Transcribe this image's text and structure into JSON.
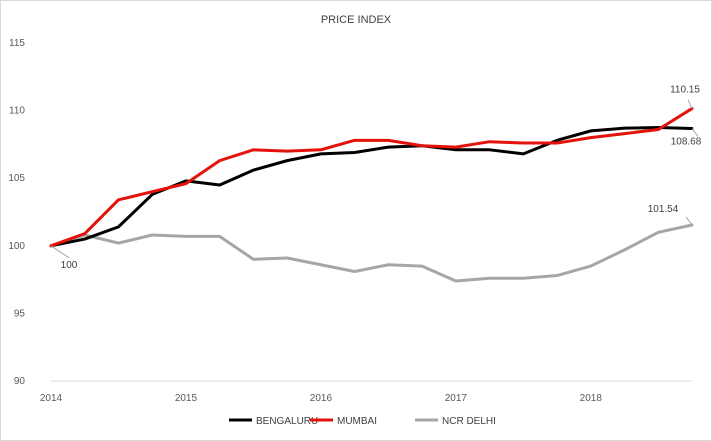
{
  "chart_data": {
    "type": "line",
    "title": "PRICE INDEX",
    "xlabel": "",
    "ylabel": "",
    "ylim": [
      90,
      115
    ],
    "yticks": [
      90,
      95,
      100,
      105,
      110,
      115
    ],
    "x": [
      2014.0,
      2014.25,
      2014.5,
      2014.75,
      2015.0,
      2015.25,
      2015.5,
      2015.75,
      2016.0,
      2016.25,
      2016.5,
      2016.75,
      2017.0,
      2017.25,
      2017.5,
      2017.75,
      2018.0,
      2018.25,
      2018.5,
      2018.75
    ],
    "xticks": [
      {
        "value": 2014,
        "label": "2014"
      },
      {
        "value": 2015,
        "label": "2015"
      },
      {
        "value": 2016,
        "label": "2016"
      },
      {
        "value": 2017,
        "label": "2017"
      },
      {
        "value": 2018,
        "label": "2018"
      }
    ],
    "grid": false,
    "legend_position": "bottom",
    "series": [
      {
        "name": "BENGALURU",
        "color": "#000000",
        "values": [
          100,
          100.5,
          101.4,
          103.8,
          104.8,
          104.5,
          105.6,
          106.3,
          106.8,
          106.9,
          107.3,
          107.4,
          107.1,
          107.1,
          106.8,
          107.8,
          108.5,
          108.7,
          108.75,
          108.68
        ]
      },
      {
        "name": "MUMBAI",
        "color": "#e3120b",
        "values": [
          100,
          100.9,
          103.4,
          104.0,
          104.6,
          106.3,
          107.1,
          107.0,
          107.1,
          107.8,
          107.8,
          107.4,
          107.3,
          107.7,
          107.6,
          107.6,
          108.0,
          108.3,
          108.6,
          110.15
        ]
      },
      {
        "name": "NCR DELHI",
        "color": "#a6a6a6",
        "values": [
          100,
          100.8,
          100.2,
          100.8,
          100.7,
          100.7,
          99.0,
          99.1,
          98.6,
          98.1,
          98.6,
          98.5,
          97.4,
          97.6,
          97.6,
          97.8,
          98.5,
          99.7,
          101.0,
          101.54
        ]
      }
    ],
    "annotations": [
      {
        "text": "100",
        "series": "BENGALURU",
        "point_index": 0
      },
      {
        "text": "110.15",
        "series": "MUMBAI",
        "point_index": 19
      },
      {
        "text": "108.68",
        "series": "BENGALURU",
        "point_index": 19
      },
      {
        "text": "101.54",
        "series": "NCR DELHI",
        "point_index": 19
      }
    ]
  }
}
